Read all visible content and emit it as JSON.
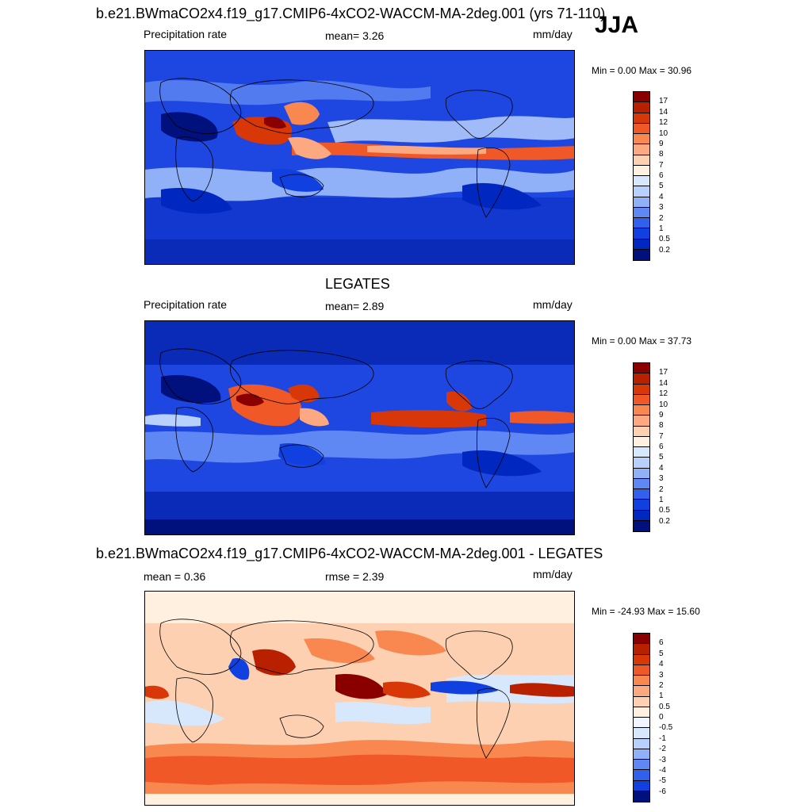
{
  "header": {
    "season": "JJA"
  },
  "panels": [
    {
      "id": "model",
      "title": "b.e21.BWmaCO2x4.f19_g17.CMIP6-4xCO2-WACCM-MA-2deg.001 (yrs 71-110)",
      "left_label": "Precipitation rate",
      "center_label": "mean=   3.26",
      "units": "mm/day",
      "minmax": "Min =   0.00 Max =  30.96",
      "colorbar_labels": [
        "17",
        "14",
        "12",
        "10",
        "9",
        "8",
        "7",
        "6",
        "5",
        "4",
        "3",
        "2",
        "1",
        "0.5",
        "0.2"
      ],
      "colorbar_colors": [
        "#8a0000",
        "#b82000",
        "#d83808",
        "#f05828",
        "#f88850",
        "#fca880",
        "#fcd0b0",
        "#fff0e0",
        "#d8e8fc",
        "#b8d0fc",
        "#90b0f8",
        "#6088f4",
        "#3060ec",
        "#1040e0",
        "#0028c0",
        "#00107c"
      ]
    },
    {
      "id": "obs",
      "title": "LEGATES",
      "left_label": "Precipitation rate",
      "center_label": "mean=   2.89",
      "units": "mm/day",
      "minmax": "Min =   0.00 Max =  37.73",
      "colorbar_labels": [
        "17",
        "14",
        "12",
        "10",
        "9",
        "8",
        "7",
        "6",
        "5",
        "4",
        "3",
        "2",
        "1",
        "0.5",
        "0.2"
      ],
      "colorbar_colors": [
        "#8a0000",
        "#b82000",
        "#d83808",
        "#f05828",
        "#f88850",
        "#fca880",
        "#fcd0b0",
        "#fff0e0",
        "#d8e8fc",
        "#b8d0fc",
        "#90b0f8",
        "#6088f4",
        "#3060ec",
        "#1040e0",
        "#0028c0",
        "#00107c"
      ]
    },
    {
      "id": "diff",
      "title": "b.e21.BWmaCO2x4.f19_g17.CMIP6-4xCO2-WACCM-MA-2deg.001 - LEGATES",
      "left_label": "mean =   0.36",
      "center_label": "rmse =   2.39",
      "units": "mm/day",
      "minmax": "Min = -24.93 Max =  15.60",
      "colorbar_labels": [
        "6",
        "5",
        "4",
        "3",
        "2",
        "1",
        "0.5",
        "0",
        "-0.5",
        "-1",
        "-2",
        "-3",
        "-4",
        "-5",
        "-6"
      ],
      "colorbar_colors": [
        "#8a0000",
        "#b82000",
        "#d83808",
        "#f05828",
        "#f88850",
        "#fca880",
        "#fcd0b0",
        "#fff0e0",
        "#f0f6ff",
        "#d8e8fc",
        "#b8d0fc",
        "#90b0f8",
        "#6088f4",
        "#3060ec",
        "#1040e0",
        "#00107c"
      ]
    }
  ]
}
